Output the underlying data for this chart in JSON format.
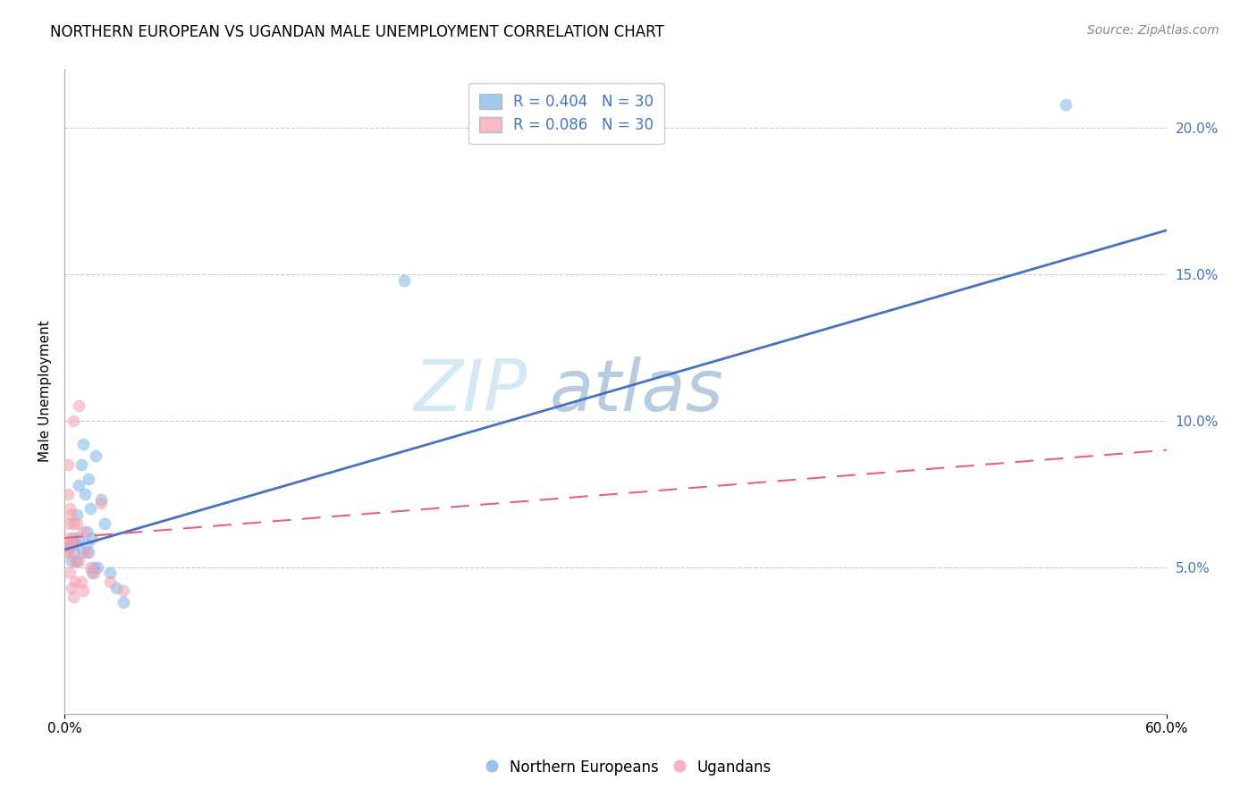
{
  "title": "NORTHERN EUROPEAN VS UGANDAN MALE UNEMPLOYMENT CORRELATION CHART",
  "source": "Source: ZipAtlas.com",
  "ylabel": "Male Unemployment",
  "xlabel": "",
  "xlim": [
    0.0,
    0.6
  ],
  "ylim": [
    0.0,
    0.22
  ],
  "x_tick_positions": [
    0.0,
    0.6
  ],
  "x_tick_labels": [
    "0.0%",
    "60.0%"
  ],
  "y_ticks_right": [
    0.05,
    0.1,
    0.15,
    0.2
  ],
  "y_tick_labels_right": [
    "5.0%",
    "10.0%",
    "15.0%",
    "20.0%"
  ],
  "blue_color": "#7FB3E8",
  "pink_color": "#F4A0B0",
  "blue_line_color": "#4472C4",
  "pink_line_color": "#E8607A",
  "watermark_color": "#D5E8F5",
  "legend_blue_r": "R = 0.404",
  "legend_blue_n": "N = 30",
  "legend_pink_r": "R = 0.086",
  "legend_pink_n": "N = 30",
  "blue_scatter_x": [
    0.003,
    0.004,
    0.005,
    0.005,
    0.006,
    0.007,
    0.007,
    0.008,
    0.008,
    0.009,
    0.01,
    0.01,
    0.011,
    0.012,
    0.012,
    0.013,
    0.013,
    0.014,
    0.015,
    0.015,
    0.016,
    0.017,
    0.018,
    0.02,
    0.022,
    0.025,
    0.028,
    0.032,
    0.185,
    0.545
  ],
  "blue_scatter_y": [
    0.057,
    0.052,
    0.06,
    0.055,
    0.058,
    0.068,
    0.052,
    0.078,
    0.06,
    0.085,
    0.092,
    0.055,
    0.075,
    0.062,
    0.058,
    0.08,
    0.055,
    0.07,
    0.06,
    0.048,
    0.05,
    0.088,
    0.05,
    0.073,
    0.065,
    0.048,
    0.043,
    0.038,
    0.148,
    0.208
  ],
  "pink_scatter_x": [
    0.001,
    0.001,
    0.002,
    0.002,
    0.002,
    0.002,
    0.003,
    0.003,
    0.003,
    0.004,
    0.004,
    0.004,
    0.005,
    0.005,
    0.005,
    0.005,
    0.006,
    0.006,
    0.007,
    0.008,
    0.008,
    0.009,
    0.01,
    0.01,
    0.012,
    0.014,
    0.016,
    0.02,
    0.025,
    0.032
  ],
  "pink_scatter_y": [
    0.058,
    0.055,
    0.085,
    0.075,
    0.065,
    0.055,
    0.07,
    0.06,
    0.048,
    0.068,
    0.058,
    0.043,
    0.1,
    0.065,
    0.058,
    0.04,
    0.052,
    0.045,
    0.065,
    0.105,
    0.052,
    0.045,
    0.062,
    0.042,
    0.055,
    0.05,
    0.048,
    0.072,
    0.045,
    0.042
  ],
  "blue_line_x0": 0.0,
  "blue_line_y0": 0.056,
  "blue_line_x1": 0.6,
  "blue_line_y1": 0.165,
  "pink_line_x0": 0.0,
  "pink_line_y0": 0.06,
  "pink_line_x1": 0.6,
  "pink_line_y1": 0.09,
  "title_fontsize": 12,
  "source_fontsize": 10,
  "marker_size": 100,
  "marker_alpha": 0.55
}
